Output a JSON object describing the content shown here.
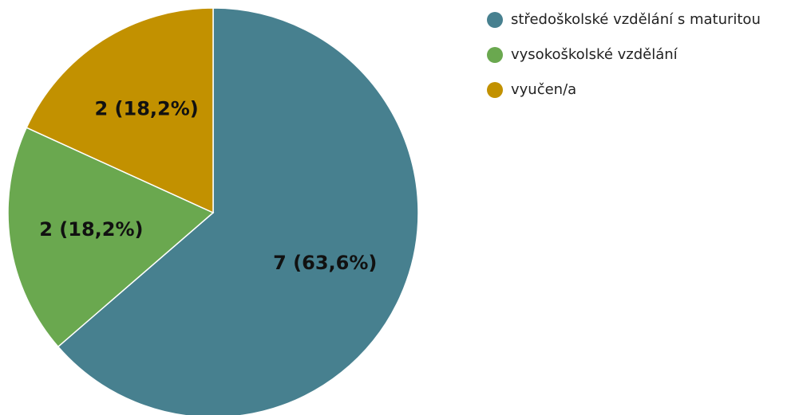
{
  "chart_data": {
    "type": "pie",
    "categories": [
      "středoškolské vzdělání s maturitou",
      "vysokoškolské vzdělání",
      "vyučen/a"
    ],
    "values": [
      7,
      2,
      2
    ],
    "value_labels": [
      "7 (63,6%)",
      "2 (18,2%)",
      "2 (18,2%)"
    ],
    "colors": [
      "#47808f",
      "#6aa84f",
      "#c29100"
    ],
    "legend": "right"
  }
}
